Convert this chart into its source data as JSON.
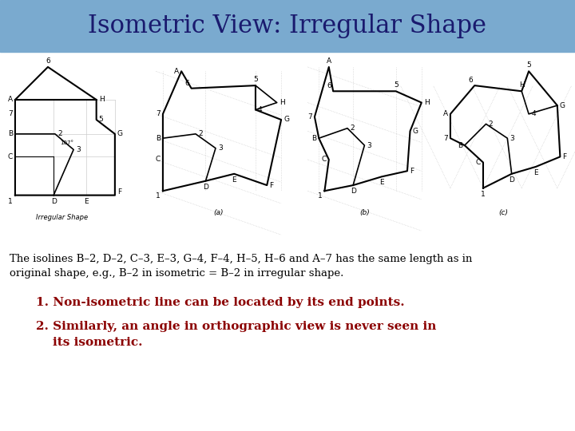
{
  "title": "Isometric View: Irregular Shape",
  "title_bg_color": "#7aaacf",
  "title_text_color": "#1a1a6e",
  "title_fontsize": 22,
  "bg_color": "#ffffff",
  "body_text_line1": "The isolines B–2, D–2, C–3, E–3, G–4, F–4, H–5, H–6 and A–7 has the same length as in",
  "body_text_line2": "original shape, e.g., B–2 in isometric = B–2 in irregular shape.",
  "body_fontsize": 9.5,
  "body_color": "#000000",
  "point1_text": "1. Non-isometric line can be located by its end points.",
  "point2_text": "2. Similarly, an angle in orthographic view is never seen in",
  "point3_text": "    its isometric.",
  "points_fontsize": 11,
  "points_color": "#8b0000"
}
